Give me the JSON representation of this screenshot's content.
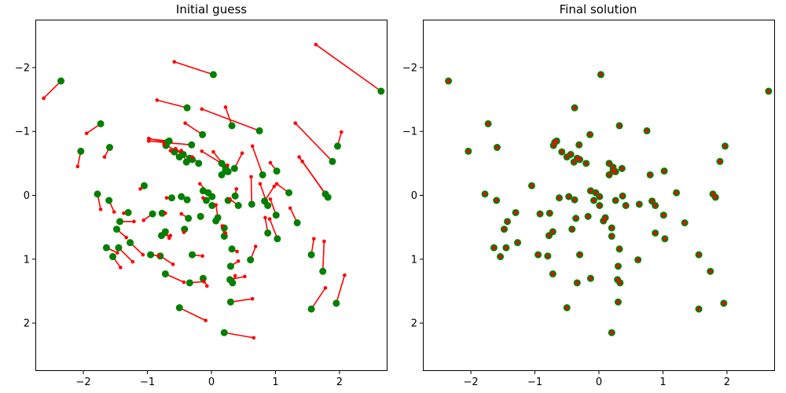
{
  "colors": {
    "target": "#ff0000",
    "guess": "#008000",
    "line": "#ff0000"
  },
  "chart_data": [
    {
      "type": "scatter",
      "title": "Initial guess",
      "xlabel": "",
      "ylabel": "",
      "xlim": [
        -2.75,
        2.75
      ],
      "ylim": [
        2.75,
        -2.75
      ],
      "y_inverted": true,
      "xticks": [
        -2,
        -1,
        0,
        1,
        2
      ],
      "yticks": [
        -2,
        -1,
        0,
        1,
        2
      ],
      "xtick_labels": [
        "−2",
        "−1",
        "0",
        "1",
        "2"
      ],
      "ytick_labels": [
        "−2",
        "−1",
        "0",
        "1",
        "2"
      ],
      "grid": false,
      "series": [
        {
          "role": "target (red, small)",
          "marker": "small dot"
        },
        {
          "role": "guess (green, large)",
          "marker": "large dot"
        }
      ],
      "segments": [
        {
          "from": [
            0.03,
            -1.89
          ],
          "to": [
            -0.58,
            -2.09
          ]
        },
        {
          "from": [
            2.65,
            -1.63
          ],
          "to": [
            1.63,
            -2.36
          ]
        },
        {
          "from": [
            -2.35,
            -1.79
          ],
          "to": [
            -2.62,
            -1.52
          ]
        },
        {
          "from": [
            -0.38,
            -1.37
          ],
          "to": [
            -0.85,
            -1.49
          ]
        },
        {
          "from": [
            0.32,
            -1.09
          ],
          "to": [
            0.22,
            -1.38
          ]
        },
        {
          "from": [
            -0.14,
            -0.95
          ],
          "to": [
            -0.41,
            -1.13
          ]
        },
        {
          "from": [
            0.75,
            -1.01
          ],
          "to": [
            -0.15,
            -1.35
          ]
        },
        {
          "from": [
            -1.73,
            -1.12
          ],
          "to": [
            -1.95,
            -0.97
          ]
        },
        {
          "from": [
            1.97,
            -0.77
          ],
          "to": [
            2.03,
            -0.99
          ]
        },
        {
          "from": [
            1.89,
            -0.53
          ],
          "to": [
            1.31,
            -1.13
          ]
        },
        {
          "from": [
            -2.04,
            -0.69
          ],
          "to": [
            -2.09,
            -0.45
          ]
        },
        {
          "from": [
            -1.59,
            -0.75
          ],
          "to": [
            -1.67,
            -0.6
          ]
        },
        {
          "from": [
            -0.69,
            -0.83
          ],
          "to": [
            -0.98,
            -0.89
          ]
        },
        {
          "from": [
            -0.66,
            -0.85
          ],
          "to": [
            -0.97,
            -0.88
          ]
        },
        {
          "from": [
            -0.31,
            -0.79
          ],
          "to": [
            -0.98,
            -0.85
          ]
        },
        {
          "from": [
            -0.44,
            -0.64
          ],
          "to": [
            -0.74,
            -0.8
          ]
        },
        {
          "from": [
            -0.5,
            -0.6
          ],
          "to": [
            -0.64,
            -0.7
          ]
        },
        {
          "from": [
            -0.34,
            -0.58
          ],
          "to": [
            -0.56,
            -0.73
          ]
        },
        {
          "from": [
            -0.39,
            -0.52
          ],
          "to": [
            -0.47,
            -0.7
          ]
        },
        {
          "from": [
            -0.2,
            -0.5
          ],
          "to": [
            -0.3,
            -0.6
          ]
        },
        {
          "from": [
            0.16,
            -0.5
          ],
          "to": [
            -0.15,
            -0.69
          ]
        },
        {
          "from": [
            0.22,
            -0.44
          ],
          "to": [
            0.03,
            -0.68
          ]
        },
        {
          "from": [
            0.36,
            -0.42
          ],
          "to": [
            0.48,
            -0.66
          ]
        },
        {
          "from": [
            0.22,
            -0.38
          ],
          "to": [
            0.25,
            -0.47
          ]
        },
        {
          "from": [
            0.8,
            -0.32
          ],
          "to": [
            0.64,
            -0.77
          ]
        },
        {
          "from": [
            1.02,
            -0.38
          ],
          "to": [
            0.92,
            -0.51
          ]
        },
        {
          "from": [
            1.78,
            -0.02
          ],
          "to": [
            1.37,
            -0.6
          ]
        },
        {
          "from": [
            1.82,
            0.03
          ],
          "to": [
            1.42,
            -0.53
          ]
        },
        {
          "from": [
            -1.05,
            -0.15
          ],
          "to": [
            -1.11,
            -0.1
          ]
        },
        {
          "from": [
            -0.05,
            -0.04
          ],
          "to": [
            -0.18,
            -0.18
          ]
        },
        {
          "from": [
            0.37,
            0.01
          ],
          "to": [
            0.39,
            -0.1
          ]
        },
        {
          "from": [
            1.21,
            -0.04
          ],
          "to": [
            1.02,
            -0.18
          ]
        },
        {
          "from": [
            -1.78,
            -0.02
          ],
          "to": [
            -1.73,
            0.22
          ]
        },
        {
          "from": [
            -1.6,
            0.08
          ],
          "to": [
            -1.52,
            0.26
          ]
        },
        {
          "from": [
            0.88,
            0.16
          ],
          "to": [
            0.76,
            -0.18
          ]
        },
        {
          "from": [
            0.83,
            0.09
          ],
          "to": [
            0.98,
            -0.14
          ]
        },
        {
          "from": [
            1.01,
            0.31
          ],
          "to": [
            0.92,
            0.06
          ]
        },
        {
          "from": [
            1.34,
            0.43
          ],
          "to": [
            1.23,
            0.2
          ]
        },
        {
          "from": [
            0.63,
            0.14
          ],
          "to": [
            0.62,
            -0.29
          ]
        },
        {
          "from": [
            0.1,
            0.35
          ],
          "to": [
            0.07,
            0.15
          ]
        },
        {
          "from": [
            -0.36,
            0.36
          ],
          "to": [
            -0.47,
            0.29
          ]
        },
        {
          "from": [
            -0.92,
            0.29
          ],
          "to": [
            -1.06,
            0.39
          ]
        },
        {
          "from": [
            -1.43,
            0.41
          ],
          "to": [
            -1.21,
            0.41
          ]
        },
        {
          "from": [
            -1.3,
            0.27
          ],
          "to": [
            -1.37,
            0.28
          ]
        },
        {
          "from": [
            -1.48,
            0.53
          ],
          "to": [
            -1.33,
            0.66
          ]
        },
        {
          "from": [
            -0.78,
            0.63
          ],
          "to": [
            -0.64,
            0.63
          ]
        },
        {
          "from": [
            -0.42,
            0.53
          ],
          "to": [
            -0.43,
            0.58
          ]
        },
        {
          "from": [
            -0.72,
            0.57
          ],
          "to": [
            -0.66,
            0.67
          ]
        },
        {
          "from": [
            0.2,
            0.51
          ],
          "to": [
            0.22,
            0.59
          ]
        },
        {
          "from": [
            0.88,
            0.59
          ],
          "to": [
            0.84,
            0.35
          ]
        },
        {
          "from": [
            1.03,
            0.68
          ],
          "to": [
            0.91,
            0.37
          ]
        },
        {
          "from": [
            0.2,
            0.64
          ],
          "to": [
            0.17,
            0.48
          ]
        },
        {
          "from": [
            -1.27,
            0.74
          ],
          "to": [
            -1.07,
            0.93
          ]
        },
        {
          "from": [
            -0.95,
            0.93
          ],
          "to": [
            -0.82,
            0.95
          ]
        },
        {
          "from": [
            -0.3,
            0.93
          ],
          "to": [
            -0.14,
            0.95
          ]
        },
        {
          "from": [
            0.32,
            0.84
          ],
          "to": [
            0.4,
            0.88
          ]
        },
        {
          "from": [
            -1.45,
            0.82
          ],
          "to": [
            -1.23,
            1.04
          ]
        },
        {
          "from": [
            -1.64,
            0.82
          ],
          "to": [
            -1.47,
            0.9
          ]
        },
        {
          "from": [
            -1.54,
            0.96
          ],
          "to": [
            -1.42,
            1.13
          ]
        },
        {
          "from": [
            -0.8,
            0.95
          ],
          "to": [
            -0.6,
            1.08
          ]
        },
        {
          "from": [
            0.61,
            1.01
          ],
          "to": [
            0.69,
            0.8
          ]
        },
        {
          "from": [
            -0.72,
            1.23
          ],
          "to": [
            -0.43,
            1.36
          ]
        },
        {
          "from": [
            0.3,
            1.11
          ],
          "to": [
            0.42,
            1.03
          ]
        },
        {
          "from": [
            -0.34,
            1.37
          ],
          "to": [
            -0.12,
            1.35
          ]
        },
        {
          "from": [
            -0.13,
            1.3
          ],
          "to": [
            -0.07,
            1.42
          ]
        },
        {
          "from": [
            0.29,
            1.32
          ],
          "to": [
            0.52,
            1.27
          ]
        },
        {
          "from": [
            0.33,
            1.37
          ],
          "to": [
            0.37,
            1.26
          ]
        },
        {
          "from": [
            1.74,
            1.19
          ],
          "to": [
            1.76,
            0.72
          ]
        },
        {
          "from": [
            1.95,
            1.69
          ],
          "to": [
            2.08,
            1.25
          ]
        },
        {
          "from": [
            1.56,
            1.78
          ],
          "to": [
            1.78,
            1.45
          ]
        },
        {
          "from": [
            0.3,
            1.67
          ],
          "to": [
            0.64,
            1.62
          ]
        },
        {
          "from": [
            -0.5,
            1.76
          ],
          "to": [
            -0.09,
            1.96
          ]
        },
        {
          "from": [
            0.2,
            2.15
          ],
          "to": [
            0.66,
            2.23
          ]
        },
        {
          "from": [
            1.56,
            0.93
          ],
          "to": [
            1.6,
            0.68
          ]
        },
        {
          "from": [
            -0.62,
            0.04
          ],
          "to": [
            -0.7,
            0.04
          ]
        },
        {
          "from": [
            -0.08,
            0.08
          ],
          "to": [
            -0.13,
            0.04
          ]
        },
        {
          "from": [
            0.42,
            0.16
          ],
          "to": [
            0.29,
            0.06
          ]
        },
        {
          "from": [
            -0.77,
            0.28
          ],
          "to": [
            -0.72,
            0.28
          ]
        }
      ],
      "green_only": [
        [
          -0.71,
          -0.78
        ],
        [
          -0.3,
          -0.56
        ],
        [
          0.26,
          -0.37
        ],
        [
          0.01,
          0.16
        ],
        [
          0.07,
          0.4
        ],
        [
          -0.17,
          0.33
        ],
        [
          -0.38,
          0.07
        ],
        [
          -0.47,
          0.02
        ],
        [
          0.26,
          0.08
        ],
        [
          0.16,
          -0.32
        ],
        [
          -0.58,
          -0.68
        ],
        [
          -0.13,
          -0.07
        ],
        [
          0.01,
          0.02
        ]
      ]
    },
    {
      "type": "scatter",
      "title": "Final solution",
      "xlabel": "",
      "ylabel": "",
      "xlim": [
        -2.75,
        2.75
      ],
      "ylim": [
        2.75,
        -2.75
      ],
      "y_inverted": true,
      "xticks": [
        -2,
        -1,
        0,
        1,
        2
      ],
      "yticks": [
        -2,
        -1,
        0,
        1,
        2
      ],
      "xtick_labels": [
        "−2",
        "−1",
        "0",
        "1",
        "2"
      ],
      "ytick_labels": [
        "−2",
        "−1",
        "0",
        "1",
        "2"
      ],
      "grid": false,
      "note_points": "red target dots sit exactly on top of green guess dots",
      "points": [
        [
          0.03,
          -1.89
        ],
        [
          2.65,
          -1.63
        ],
        [
          -2.35,
          -1.79
        ],
        [
          -0.38,
          -1.37
        ],
        [
          0.32,
          -1.09
        ],
        [
          -0.14,
          -0.95
        ],
        [
          0.75,
          -1.01
        ],
        [
          -1.73,
          -1.12
        ],
        [
          1.97,
          -0.77
        ],
        [
          1.89,
          -0.53
        ],
        [
          -2.04,
          -0.69
        ],
        [
          -1.59,
          -0.75
        ],
        [
          -0.69,
          -0.83
        ],
        [
          -0.66,
          -0.85
        ],
        [
          -0.31,
          -0.79
        ],
        [
          -0.44,
          -0.64
        ],
        [
          -0.5,
          -0.6
        ],
        [
          -0.34,
          -0.58
        ],
        [
          -0.39,
          -0.52
        ],
        [
          -0.2,
          -0.5
        ],
        [
          0.16,
          -0.5
        ],
        [
          0.22,
          -0.44
        ],
        [
          0.36,
          -0.42
        ],
        [
          0.22,
          -0.38
        ],
        [
          0.8,
          -0.32
        ],
        [
          1.02,
          -0.38
        ],
        [
          1.78,
          -0.02
        ],
        [
          1.82,
          0.03
        ],
        [
          -1.05,
          -0.15
        ],
        [
          -0.05,
          -0.04
        ],
        [
          0.37,
          0.01
        ],
        [
          1.21,
          -0.04
        ],
        [
          -1.78,
          -0.02
        ],
        [
          -1.6,
          0.08
        ],
        [
          0.88,
          0.16
        ],
        [
          0.83,
          0.09
        ],
        [
          1.01,
          0.31
        ],
        [
          1.34,
          0.43
        ],
        [
          0.63,
          0.14
        ],
        [
          0.1,
          0.35
        ],
        [
          -0.36,
          0.36
        ],
        [
          -0.92,
          0.29
        ],
        [
          -1.43,
          0.41
        ],
        [
          -1.3,
          0.27
        ],
        [
          -1.48,
          0.53
        ],
        [
          -0.78,
          0.63
        ],
        [
          -0.42,
          0.53
        ],
        [
          -0.72,
          0.57
        ],
        [
          0.2,
          0.51
        ],
        [
          0.88,
          0.59
        ],
        [
          1.03,
          0.68
        ],
        [
          0.2,
          0.64
        ],
        [
          -1.27,
          0.74
        ],
        [
          -0.95,
          0.93
        ],
        [
          -0.3,
          0.93
        ],
        [
          0.32,
          0.84
        ],
        [
          -1.45,
          0.82
        ],
        [
          -1.64,
          0.82
        ],
        [
          -1.54,
          0.96
        ],
        [
          -0.8,
          0.95
        ],
        [
          0.61,
          1.01
        ],
        [
          -0.72,
          1.23
        ],
        [
          0.3,
          1.11
        ],
        [
          -0.34,
          1.37
        ],
        [
          -0.13,
          1.3
        ],
        [
          0.29,
          1.32
        ],
        [
          0.33,
          1.37
        ],
        [
          1.74,
          1.19
        ],
        [
          1.95,
          1.69
        ],
        [
          1.56,
          1.78
        ],
        [
          0.3,
          1.67
        ],
        [
          -0.5,
          1.76
        ],
        [
          0.2,
          2.15
        ],
        [
          1.56,
          0.93
        ],
        [
          -0.62,
          0.04
        ],
        [
          -0.08,
          0.08
        ],
        [
          0.42,
          0.16
        ],
        [
          -0.77,
          0.28
        ],
        [
          -0.71,
          -0.78
        ],
        [
          -0.3,
          -0.56
        ],
        [
          0.26,
          -0.37
        ],
        [
          0.01,
          0.16
        ],
        [
          0.07,
          0.4
        ],
        [
          -0.17,
          0.33
        ],
        [
          -0.38,
          0.07
        ],
        [
          -0.47,
          0.02
        ],
        [
          0.26,
          0.08
        ],
        [
          0.16,
          -0.32
        ],
        [
          -0.58,
          -0.68
        ],
        [
          -0.13,
          -0.07
        ],
        [
          0.01,
          0.02
        ]
      ]
    }
  ]
}
